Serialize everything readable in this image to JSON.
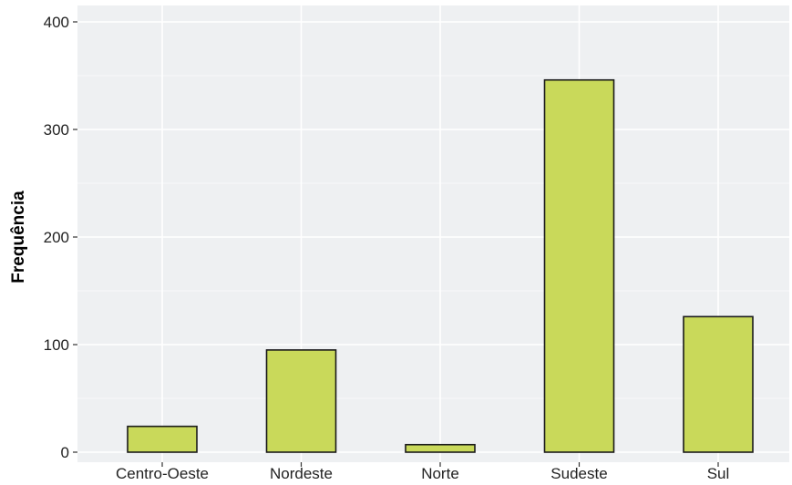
{
  "chart_data": {
    "type": "bar",
    "categories": [
      "Centro-Oeste",
      "Nordeste",
      "Norte",
      "Sudeste",
      "Sul"
    ],
    "values": [
      24,
      95,
      7,
      346,
      126
    ],
    "xlabel": "",
    "ylabel": "Frequência",
    "ylim": [
      0,
      400
    ],
    "yticks": [
      0,
      100,
      200,
      300,
      400
    ],
    "grid": true,
    "legend": "none",
    "colors": {
      "bar_fill": "#c9d95a",
      "bar_stroke": "#1a1a1a",
      "panel_background": "#eef0f2",
      "gridline": "#ffffff"
    }
  }
}
